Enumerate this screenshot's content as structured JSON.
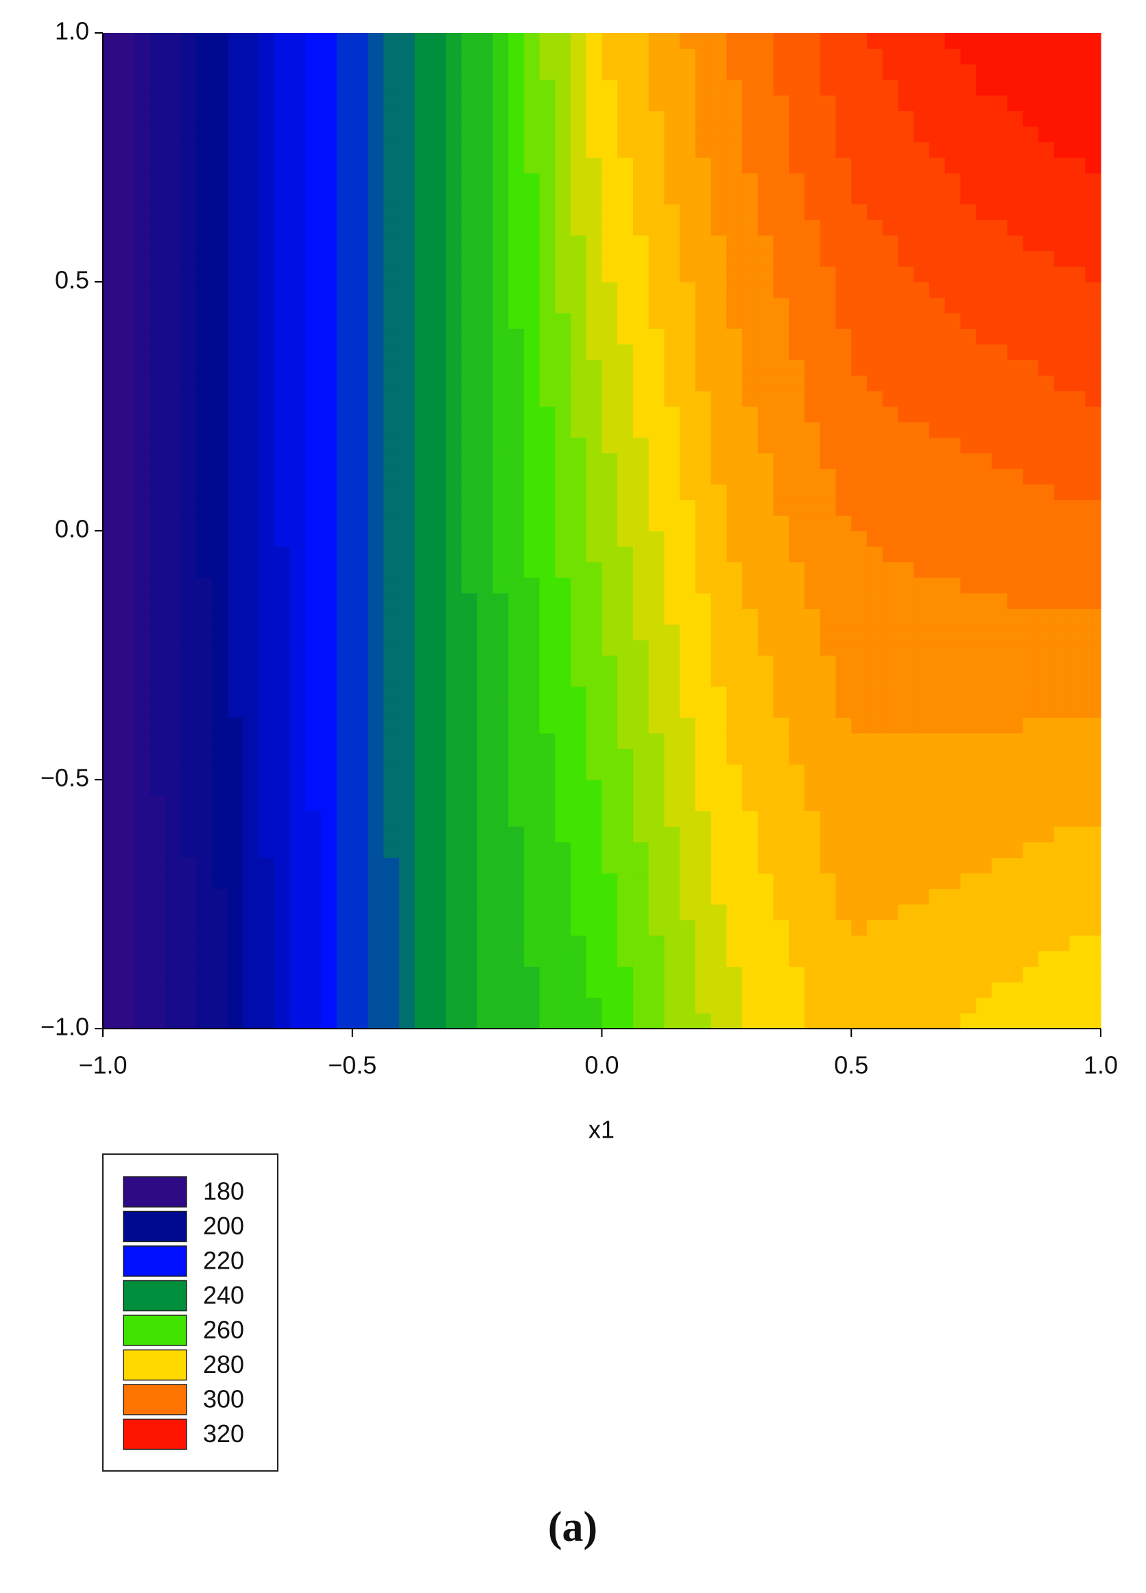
{
  "chart_data": {
    "type": "contour",
    "xlabel": "x1",
    "caption": "(a)",
    "x": [
      -1,
      -0.75,
      -0.5,
      -0.25,
      0,
      0.25,
      0.5,
      0.75,
      1
    ],
    "y": [
      -1,
      -0.75,
      -0.5,
      -0.25,
      0,
      0.25,
      0.5,
      0.75,
      1
    ],
    "z": [
      [
        180,
        200,
        228,
        250,
        260,
        278,
        288,
        284,
        280
      ],
      [
        180,
        201,
        228,
        250,
        263,
        281,
        291,
        289,
        286
      ],
      [
        180,
        203,
        228,
        251,
        266,
        284,
        294,
        293,
        292
      ],
      [
        180,
        204,
        228,
        251,
        269,
        287,
        297,
        298,
        298
      ],
      [
        180,
        205,
        228,
        252,
        272,
        290,
        300,
        302,
        304
      ],
      [
        180,
        205,
        228,
        252,
        275,
        293,
        304,
        307,
        310
      ],
      [
        180,
        205,
        228,
        252,
        279,
        295,
        307,
        312,
        315
      ],
      [
        180,
        205,
        228,
        252,
        282,
        298,
        311,
        317,
        321
      ],
      [
        180,
        205,
        228,
        252,
        285,
        300,
        314,
        322,
        326
      ]
    ],
    "levels": [
      180,
      200,
      220,
      240,
      260,
      280,
      300,
      320
    ],
    "colors": [
      "#2e0a85",
      "#000a90",
      "#0010ff",
      "#008f3c",
      "#40e400",
      "#ffd800",
      "#ff7400",
      "#ff1400"
    ],
    "xlim": [
      -1,
      1
    ],
    "ylim": [
      -1,
      1
    ],
    "xticks": [
      {
        "value": -1,
        "label": "−1.0"
      },
      {
        "value": -0.5,
        "label": "−0.5"
      },
      {
        "value": 0,
        "label": "0.0"
      },
      {
        "value": 0.5,
        "label": "0.5"
      },
      {
        "value": 1,
        "label": "1.0"
      }
    ],
    "yticks": [
      {
        "value": -1,
        "label": "−1.0"
      },
      {
        "value": -0.5,
        "label": "−0.5"
      },
      {
        "value": 0,
        "label": "0.0"
      },
      {
        "value": 0.5,
        "label": "0.5"
      },
      {
        "value": 1,
        "label": "1.0"
      }
    ]
  }
}
